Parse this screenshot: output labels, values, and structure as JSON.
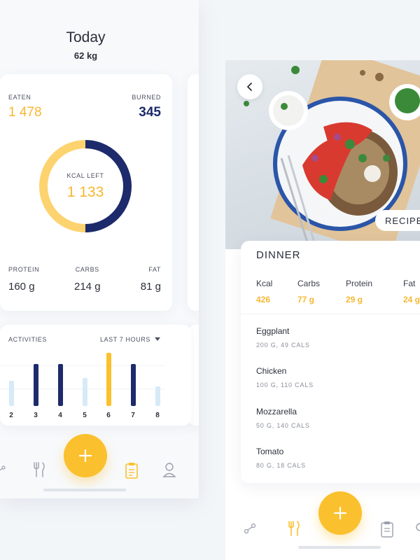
{
  "left": {
    "title": "Today",
    "weight": "62 kg",
    "summary": {
      "eaten_label": "EATEN",
      "eaten_value": "1 478",
      "burned_label": "BURNED",
      "burned_value": "345",
      "kcal_label": "KCAL LEFT",
      "kcal_value": "1 133"
    },
    "macros": [
      {
        "label": "PROTEIN",
        "value": "160 g"
      },
      {
        "label": "CARBS",
        "value": "214 g"
      },
      {
        "label": "FAT",
        "value": "81 g"
      }
    ],
    "activities": {
      "label": "ACTIVITIES",
      "range": "LAST 7 HOURS",
      "hours": [
        "2",
        "3",
        "4",
        "5",
        "6",
        "7",
        "8"
      ]
    },
    "nav_icons": [
      "share-icon",
      "fork-knife-icon",
      "add-icon",
      "clipboard-icon",
      "profile-icon"
    ]
  },
  "right": {
    "recipe_label": "RECIPE",
    "dinner": {
      "title": "DINNER",
      "nutrients": [
        {
          "name": "Kcal",
          "value": "426"
        },
        {
          "name": "Carbs",
          "value": "77 g"
        },
        {
          "name": "Protein",
          "value": "29 g"
        },
        {
          "name": "Fat",
          "value": "24 g"
        }
      ],
      "ingredients": [
        {
          "name": "Eggplant",
          "meta": "200 G, 49 CALS"
        },
        {
          "name": "Chicken",
          "meta": "100 G, 110 CALS"
        },
        {
          "name": "Mozzarella",
          "meta": "50 G, 140 CALS"
        },
        {
          "name": "Tomato",
          "meta": "80 G, 18 CALS"
        }
      ]
    }
  },
  "colors": {
    "accent": "#fbc02d",
    "yellow_text": "#f7b731",
    "navy": "#1d2a6b",
    "light_bar": "#d6eaf8"
  }
}
